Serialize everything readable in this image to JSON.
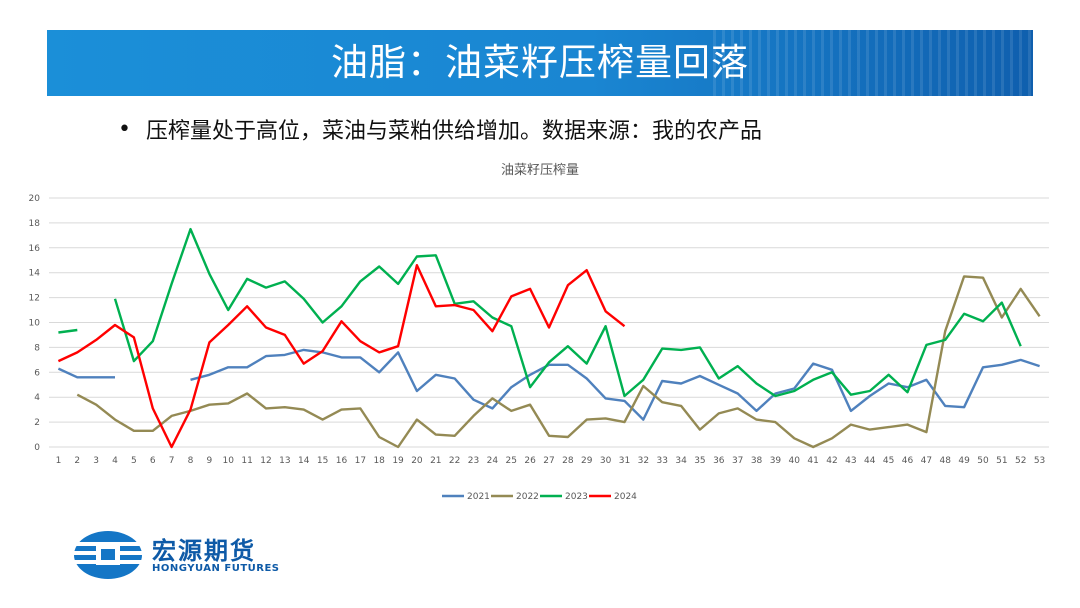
{
  "header": {
    "title": "油脂：油菜籽压榨量回落"
  },
  "bullet": {
    "symbol": "•",
    "text": "压榨量处于高位，菜油与菜粕供给增加。数据来源：我的农产品"
  },
  "logo": {
    "name_cn": "宏源期货",
    "name_en": "HONGYUAN FUTURES",
    "icon": "hongyuan-logo-icon"
  },
  "chart_data": {
    "type": "line",
    "title": "油菜籽压榨量",
    "xlabel": "",
    "ylabel": "",
    "ylim": [
      0,
      20
    ],
    "yticks": [
      0,
      2,
      4,
      6,
      8,
      10,
      12,
      14,
      16,
      18,
      20
    ],
    "x": [
      1,
      2,
      3,
      4,
      5,
      6,
      7,
      8,
      9,
      10,
      11,
      12,
      13,
      14,
      15,
      16,
      17,
      18,
      19,
      20,
      21,
      22,
      23,
      24,
      25,
      26,
      27,
      28,
      29,
      30,
      31,
      32,
      33,
      34,
      35,
      36,
      37,
      38,
      39,
      40,
      41,
      42,
      43,
      44,
      45,
      46,
      47,
      48,
      49,
      50,
      51,
      52,
      53
    ],
    "grid": true,
    "legend_position": "bottom",
    "series": [
      {
        "name": "2021",
        "color": "#4f81bd",
        "values": [
          6.3,
          5.6,
          5.6,
          5.6,
          null,
          null,
          null,
          5.4,
          5.8,
          6.4,
          6.4,
          7.3,
          7.4,
          7.8,
          7.6,
          7.2,
          7.2,
          6.0,
          7.6,
          4.5,
          5.8,
          5.5,
          3.8,
          3.1,
          4.8,
          5.8,
          6.6,
          6.6,
          5.5,
          3.9,
          3.7,
          2.2,
          5.3,
          5.1,
          5.7,
          5.0,
          4.3,
          2.9,
          4.3,
          4.7,
          6.7,
          6.2,
          2.9,
          4.1,
          5.1,
          4.8,
          5.4,
          3.3,
          3.2,
          6.4,
          6.6,
          7.0,
          6.5
        ]
      },
      {
        "name": "2022",
        "color": "#948a54",
        "values": [
          null,
          4.2,
          3.4,
          2.2,
          1.3,
          1.3,
          2.5,
          2.9,
          3.4,
          3.5,
          4.3,
          3.1,
          3.2,
          3.0,
          2.2,
          3.0,
          3.1,
          0.8,
          0.0,
          2.2,
          1.0,
          0.9,
          2.5,
          3.9,
          2.9,
          3.4,
          0.9,
          0.8,
          2.2,
          2.3,
          2.0,
          4.9,
          3.6,
          3.3,
          1.4,
          2.7,
          3.1,
          2.2,
          2.0,
          0.7,
          0.0,
          0.7,
          1.8,
          1.4,
          1.6,
          1.8,
          1.2,
          9.3,
          13.7,
          13.6,
          10.4,
          12.7,
          10.5
        ]
      },
      {
        "name": "2023",
        "color": "#00b050",
        "values": [
          9.2,
          9.4,
          null,
          11.9,
          6.9,
          8.5,
          13.1,
          17.5,
          13.9,
          11.0,
          13.5,
          12.8,
          13.3,
          11.9,
          10.0,
          11.3,
          13.3,
          14.5,
          13.1,
          15.3,
          15.4,
          11.5,
          11.7,
          10.4,
          9.7,
          4.8,
          6.8,
          8.1,
          6.7,
          9.7,
          4.1,
          5.4,
          7.9,
          7.8,
          8.0,
          5.5,
          6.5,
          5.1,
          4.1,
          4.5,
          5.4,
          6.0,
          4.2,
          4.5,
          5.8,
          4.4,
          8.2,
          8.6,
          10.7,
          10.1,
          11.6,
          8.1,
          null
        ]
      },
      {
        "name": "2024",
        "color": "#ff0000",
        "values": [
          6.9,
          7.6,
          8.6,
          9.8,
          8.8,
          3.1,
          0.0,
          3.0,
          8.4,
          9.8,
          11.3,
          9.6,
          9.0,
          6.7,
          7.7,
          10.1,
          8.5,
          7.6,
          8.1,
          14.6,
          11.3,
          11.4,
          11.0,
          9.3,
          12.1,
          12.7,
          9.6,
          13.0,
          14.2,
          10.9,
          9.7,
          null,
          null,
          null,
          null,
          null,
          null,
          null,
          null,
          null,
          null,
          null,
          null,
          null,
          null,
          null,
          null,
          null,
          null,
          null,
          null,
          null,
          null
        ]
      }
    ]
  }
}
